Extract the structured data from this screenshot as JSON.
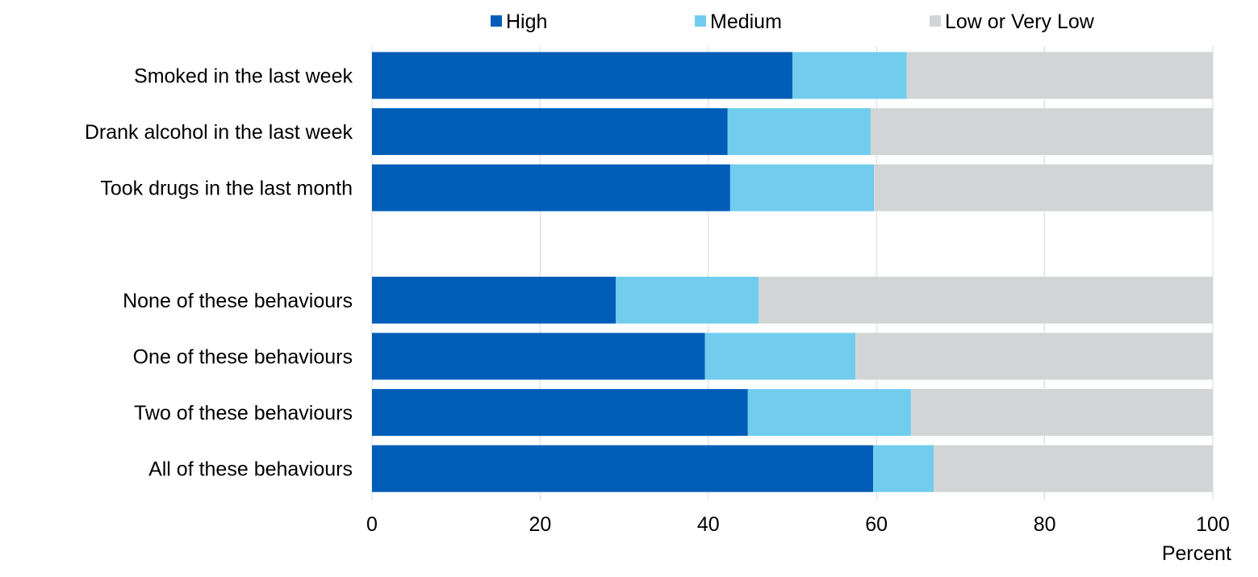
{
  "chart_data": {
    "type": "bar",
    "orientation": "horizontal",
    "stacked": true,
    "title": "",
    "xlabel": "Percent",
    "ylabel": "",
    "xlim": [
      0,
      100
    ],
    "xticks": [
      0,
      20,
      40,
      60,
      80,
      100
    ],
    "grid": true,
    "legend_position": "top",
    "categories": [
      "Smoked in the last week",
      "Drank alcohol in the last week",
      "Took drugs in the last month",
      "",
      "None of these behaviours",
      "One of these behaviours",
      "Two of these behaviours",
      "All of these behaviours"
    ],
    "series": [
      {
        "name": "High",
        "color": "#005EB8",
        "values": [
          50,
          42.3,
          42.6,
          null,
          29,
          39.6,
          44.7,
          59.6
        ]
      },
      {
        "name": "Medium",
        "color": "#71CCEE",
        "values": [
          13.6,
          17,
          17.1,
          null,
          17,
          17.9,
          19.4,
          7.2
        ]
      },
      {
        "name": "Low or Very Low",
        "color": "#D1D5D5",
        "values": [
          36.4,
          40.7,
          40.3,
          null,
          54,
          42.5,
          35.9,
          33.2
        ]
      }
    ]
  }
}
